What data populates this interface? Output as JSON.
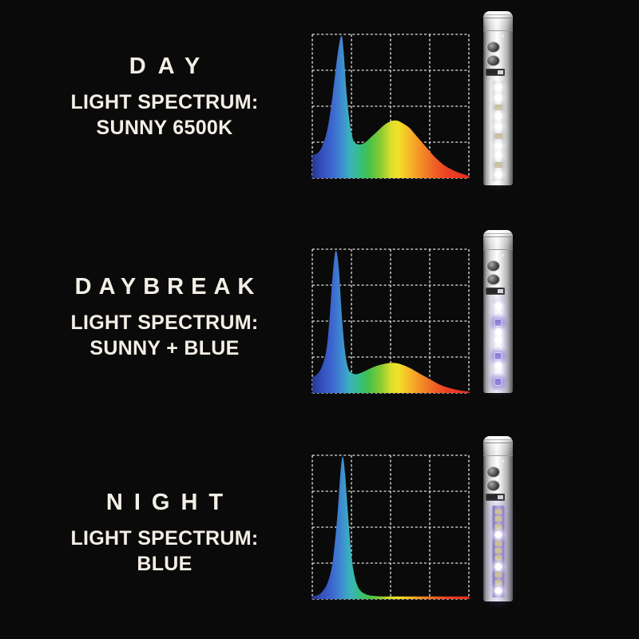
{
  "colors": {
    "background": "#0a0a0a",
    "text": "#f4efe6",
    "grid": "#f2f2f2"
  },
  "led_colors": {
    "white": "#ffffff",
    "violet": "#8d7ed8",
    "chip": "#cdc0a2"
  },
  "spectrum_gradient": [
    [
      "0%",
      "#27368e"
    ],
    [
      "6%",
      "#3350bb"
    ],
    [
      "12%",
      "#3c63cd"
    ],
    [
      "18%",
      "#3f86d0"
    ],
    [
      "24%",
      "#3ab3c0"
    ],
    [
      "30%",
      "#36bd86"
    ],
    [
      "36%",
      "#44c04b"
    ],
    [
      "44%",
      "#8bcc33"
    ],
    [
      "50%",
      "#d9dd2c"
    ],
    [
      "55%",
      "#f2e129"
    ],
    [
      "62%",
      "#f6b827"
    ],
    [
      "69%",
      "#f49026"
    ],
    [
      "77%",
      "#f06525"
    ],
    [
      "86%",
      "#eb4123"
    ],
    [
      "100%",
      "#e62d22"
    ]
  ],
  "rows": [
    {
      "id": "day",
      "title": "DAY",
      "subtitle_line1": "LIGHT SPECTRUM:",
      "subtitle_line2": "SUNNY 6500K",
      "tube": {
        "leds": [
          "white",
          "white",
          "chip",
          "white",
          "white",
          "chip",
          "white",
          "white",
          "chip",
          "white"
        ],
        "strip_gradient": [
          "#c9ccce",
          "#eef0f1",
          "#bfc2c4"
        ],
        "glow": "0 0 12px 2px rgba(255,255,255,0.30)"
      }
    },
    {
      "id": "daybreak",
      "title": "DAYBREAK",
      "subtitle_line1": "LIGHT SPECTRUM:",
      "subtitle_line2": "SUNNY + BLUE",
      "tube": {
        "leds": [
          "white",
          "white",
          "violet",
          "white",
          "white",
          "white",
          "violet",
          "white",
          "white",
          "violet"
        ],
        "strip_gradient": [
          "#c7c7dc",
          "#e6e4f3",
          "#bcbbd8"
        ],
        "glow": "0 0 12px 2px rgba(150,140,225,0.35)"
      }
    },
    {
      "id": "night",
      "title": "NIGHT",
      "subtitle_line1": "LIGHT SPECTRUM:",
      "subtitle_line2": "BLUE",
      "tube": {
        "leds": [
          "chip",
          "chip",
          "chip",
          "white",
          "chip",
          "chip",
          "chip",
          "white",
          "chip",
          "chip",
          "white"
        ],
        "strip_gradient": [
          "#8376bd",
          "#b7abe0",
          "#8d80c6"
        ],
        "glow": "0 0 14px 3px rgba(130,110,210,0.45)"
      }
    }
  ],
  "chart_data": [
    {
      "type": "area",
      "title": "DAY — LIGHT SPECTRUM: SUNNY 6500K",
      "xlabel": "",
      "ylabel": "",
      "x_range_note": "wavelength, violet-to-red, unlabeled axis (0-100%)",
      "y_range_note": "relative intensity 0-100%",
      "grid": {
        "columns": 4,
        "rows": 4,
        "style": "dashed",
        "color": "#ffffff"
      },
      "legend": "none",
      "fill": "spectrum rainbow gradient",
      "x": [
        0,
        4,
        7,
        10,
        13,
        16,
        18.5,
        20,
        22,
        24,
        26,
        28,
        31,
        34,
        38,
        42,
        46,
        50,
        54,
        58,
        62,
        66,
        70,
        74,
        78,
        83,
        88,
        93,
        100
      ],
      "y": [
        16,
        18,
        24,
        36,
        58,
        85,
        99,
        88,
        58,
        38,
        27,
        24,
        23.5,
        25,
        29,
        33,
        37,
        39.5,
        40,
        38,
        35,
        30,
        25,
        20,
        15,
        10,
        6.5,
        4,
        1.5
      ]
    },
    {
      "type": "area",
      "title": "DAYBREAK — LIGHT SPECTRUM: SUNNY + BLUE",
      "xlabel": "",
      "ylabel": "",
      "x_range_note": "wavelength, violet-to-red, unlabeled axis (0-100%)",
      "y_range_note": "relative intensity 0-100%",
      "grid": {
        "columns": 4,
        "rows": 4,
        "style": "dashed",
        "color": "#ffffff"
      },
      "legend": "none",
      "fill": "spectrum rainbow gradient",
      "x": [
        0,
        3,
        6,
        9,
        11,
        13,
        15,
        17,
        19,
        21,
        23,
        25,
        28,
        31,
        35,
        39,
        43,
        47,
        51,
        55,
        59,
        63,
        67,
        71,
        76,
        81,
        86,
        91,
        96,
        100
      ],
      "y": [
        11,
        13,
        18,
        30,
        52,
        82,
        99,
        86,
        52,
        28,
        17,
        14,
        13,
        14,
        16,
        18,
        19.5,
        20.5,
        21,
        20.5,
        19,
        17,
        14.5,
        12,
        9,
        6,
        4,
        2.5,
        1.5,
        1
      ]
    },
    {
      "type": "area",
      "title": "NIGHT — LIGHT SPECTRUM: BLUE",
      "xlabel": "",
      "ylabel": "",
      "x_range_note": "wavelength, violet-to-red, unlabeled axis (0-100%)",
      "y_range_note": "relative intensity 0-100%",
      "grid": {
        "columns": 4,
        "rows": 4,
        "style": "dashed",
        "color": "#ffffff"
      },
      "legend": "none",
      "fill": "spectrum rainbow gradient",
      "x": [
        0,
        4,
        7,
        10,
        13,
        16,
        18,
        19.5,
        21,
        23,
        25,
        27,
        29,
        31,
        34,
        37,
        41,
        46,
        52,
        60,
        70,
        80,
        90,
        100
      ],
      "y": [
        2,
        3,
        6,
        12,
        26,
        58,
        88,
        99,
        86,
        56,
        30,
        16,
        9,
        5.5,
        3.5,
        2.5,
        2,
        1.8,
        1.8,
        1.8,
        1.8,
        1.8,
        1.8,
        1.8
      ]
    }
  ]
}
